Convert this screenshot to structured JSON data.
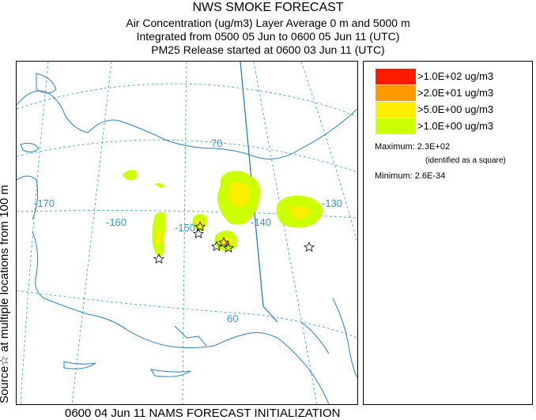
{
  "header": {
    "title": "NWS SMOKE FORECAST",
    "line1": "Air Concentration (ug/m3) Layer Average    0 m and  5000 m",
    "line2": "Integrated from 0500 05 Jun to 0600 05 Jun 11 (UTC)",
    "line3": "PM25 Release started at 0600 03 Jun 11 (UTC)"
  },
  "side_label": "Source☆ at multiple locations from 100 m",
  "footer": "0600 04 Jun 11 NAMS FORECAST INITIALIZATION",
  "legend": {
    "levels": [
      {
        "label": ">1.0E+02 ug/m3",
        "color": "#ff1a00"
      },
      {
        "label": ">2.0E+01 ug/m3",
        "color": "#ff9900"
      },
      {
        "label": ">5.0E+00 ug/m3",
        "color": "#ffee00"
      },
      {
        "label": ">1.0E+00 ug/m3",
        "color": "#ccff00"
      }
    ],
    "maximum": "Maximum: 2.3E+02",
    "maximum_note": "(identified as a square)",
    "minimum": "Minimum: 2.6E-34"
  },
  "map": {
    "longitude_labels": [
      "-170",
      "-160",
      "-150",
      "-140",
      "-130"
    ],
    "latitude_labels": [
      "70",
      "60"
    ],
    "grid_color": "#3399cc",
    "coast_color": "#2a7fb8"
  }
}
